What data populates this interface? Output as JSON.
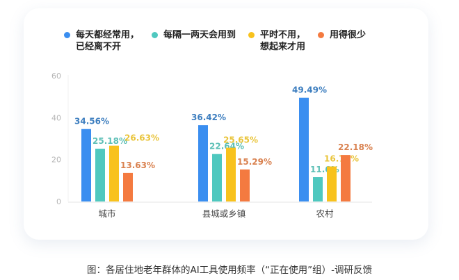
{
  "chart_data": {
    "type": "bar",
    "categories": [
      "城市",
      "县城或乡镇",
      "农村"
    ],
    "series": [
      {
        "name": "每天都经常用，\n已经离不开",
        "values": [
          34.56,
          36.42,
          49.49
        ],
        "labels": [
          "34.56%",
          "36.42%",
          "49.49%"
        ],
        "color": "#3a8ef0",
        "label_color": "#3d7ebf"
      },
      {
        "name": "每隔一两天会用到",
        "values": [
          25.18,
          22.64,
          11.6
        ],
        "labels": [
          "25.18%",
          "22.64%",
          "11.6%"
        ],
        "color": "#4fc8bf",
        "label_color": "#5cbfb6"
      },
      {
        "name": "平时不用，\n想起来才用",
        "values": [
          26.63,
          25.65,
          16.72
        ],
        "labels": [
          "26.63%",
          "25.65%",
          "16.72%"
        ],
        "color": "#f8c21d",
        "label_color": "#e9c43a"
      },
      {
        "name": "用得很少",
        "values": [
          13.63,
          15.29,
          22.18
        ],
        "labels": [
          "13.63%",
          "15.29%",
          "22.18%"
        ],
        "color": "#f47a40",
        "label_color": "#d9814f"
      }
    ],
    "yticks": [
      "0",
      "20",
      "40",
      "60"
    ],
    "ylim": [
      0,
      60
    ],
    "legend_position": "top",
    "grid": false
  },
  "caption": "图：各居住地老年群体的AI工具使用频率（“正在使用”组）-调研反馈"
}
